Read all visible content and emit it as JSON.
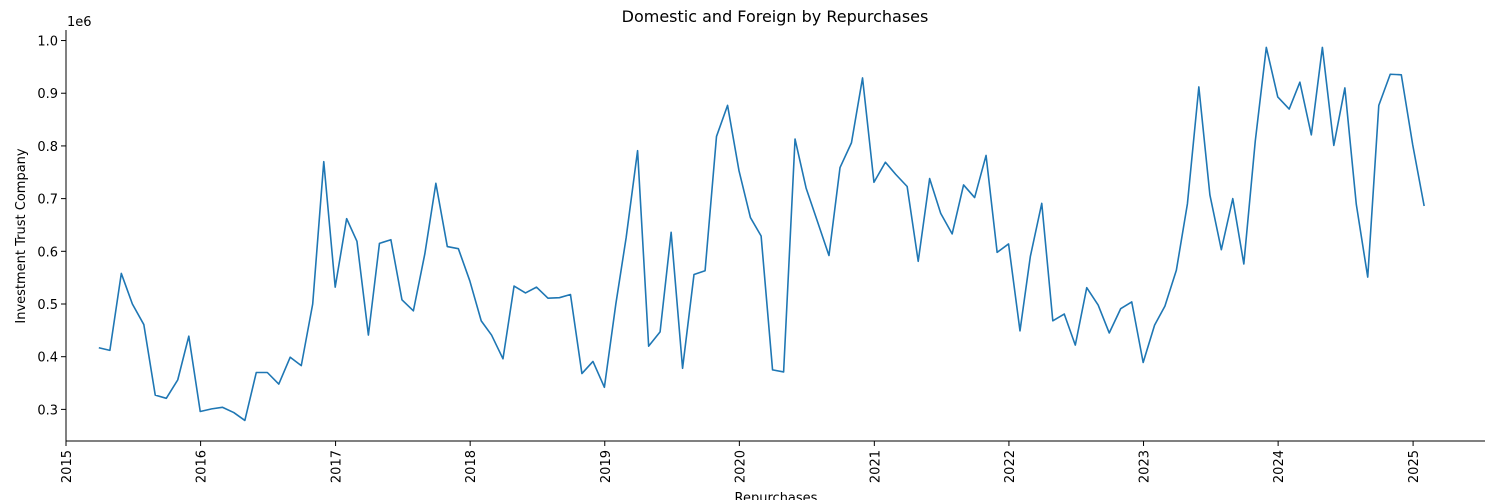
{
  "chart_data": {
    "type": "line",
    "title": "Domestic and Foreign by Repurchases",
    "xlabel": "Repurchases",
    "ylabel": "Investment Trust Company",
    "y_multiplier_label": "1e6",
    "x_tick_labels": [
      "2015",
      "2016",
      "2017",
      "2018",
      "2019",
      "2020",
      "2021",
      "2022",
      "2023",
      "2024",
      "2025"
    ],
    "y_tick_labels": [
      "0.3",
      "0.4",
      "0.5",
      "0.6",
      "0.7",
      "0.8",
      "0.9",
      "1.0"
    ],
    "xlim": [
      "2015-01-01",
      "2025-07-15"
    ],
    "ylim": [
      240000,
      1020000
    ],
    "grid": false,
    "line_color": "#1f77b4",
    "series": [
      {
        "x": [
          "2015-03-31",
          "2015-04-30",
          "2015-05-31",
          "2015-06-30",
          "2015-07-31",
          "2015-08-31",
          "2015-09-30",
          "2015-10-31",
          "2015-11-30",
          "2015-12-31",
          "2016-01-31",
          "2016-02-29",
          "2016-03-31",
          "2016-04-30",
          "2016-05-31",
          "2016-06-30",
          "2016-07-31",
          "2016-08-31",
          "2016-09-30",
          "2016-10-31",
          "2016-11-30",
          "2016-12-31",
          "2017-01-31",
          "2017-02-28",
          "2017-03-31",
          "2017-04-30",
          "2017-05-31",
          "2017-06-30",
          "2017-07-31",
          "2017-08-31",
          "2017-09-30",
          "2017-10-31",
          "2017-11-30",
          "2017-12-31",
          "2018-01-31",
          "2018-02-28",
          "2018-03-31",
          "2018-04-30",
          "2018-05-31",
          "2018-06-30",
          "2018-07-31",
          "2018-08-31",
          "2018-09-30",
          "2018-10-31",
          "2018-11-30",
          "2018-12-31",
          "2019-01-31",
          "2019-02-28",
          "2019-03-31",
          "2019-04-30",
          "2019-05-31",
          "2019-06-30",
          "2019-07-31",
          "2019-08-31",
          "2019-09-30",
          "2019-10-31",
          "2019-11-30",
          "2019-12-31",
          "2020-01-31",
          "2020-02-29",
          "2020-03-31",
          "2020-04-30",
          "2020-05-31",
          "2020-06-30",
          "2020-07-31",
          "2020-08-31",
          "2020-09-30",
          "2020-10-31",
          "2020-11-30",
          "2020-12-31",
          "2021-01-31",
          "2021-02-28",
          "2021-03-31",
          "2021-04-30",
          "2021-05-31",
          "2021-06-30",
          "2021-07-31",
          "2021-08-31",
          "2021-09-30",
          "2021-10-31",
          "2021-11-30",
          "2021-12-31",
          "2022-01-31",
          "2022-02-28",
          "2022-03-31",
          "2022-04-30",
          "2022-05-31",
          "2022-06-30",
          "2022-07-31",
          "2022-08-31",
          "2022-09-30",
          "2022-10-31",
          "2022-11-30",
          "2022-12-31",
          "2023-01-31",
          "2023-02-28",
          "2023-03-31",
          "2023-04-30",
          "2023-05-31",
          "2023-06-30",
          "2023-07-31",
          "2023-08-31",
          "2023-09-30",
          "2023-10-31",
          "2023-11-30",
          "2023-12-31",
          "2024-01-31",
          "2024-02-29",
          "2024-03-31",
          "2024-04-30",
          "2024-05-31",
          "2024-06-30",
          "2024-07-31",
          "2024-08-31",
          "2024-09-30",
          "2024-10-31",
          "2024-11-30",
          "2024-12-31",
          "2025-01-31"
        ],
        "values": [
          417000,
          412000,
          558000,
          500000,
          461000,
          327000,
          321000,
          356000,
          439000,
          296000,
          301000,
          304000,
          294000,
          279000,
          370000,
          370000,
          348000,
          399000,
          383000,
          500000,
          770000,
          532000,
          662000,
          619000,
          441000,
          615000,
          622000,
          508000,
          487000,
          595000,
          729000,
          609000,
          605000,
          544000,
          468000,
          441000,
          396000,
          534000,
          521000,
          532000,
          511000,
          512000,
          518000,
          368000,
          391000,
          342000,
          500000,
          626000,
          791000,
          420000,
          447000,
          636000,
          378000,
          556000,
          563000,
          818000,
          877000,
          753000,
          664000,
          629000,
          375000,
          371000,
          813000,
          720000,
          656000,
          592000,
          759000,
          806000,
          929000,
          731000,
          769000,
          746000,
          723000,
          581000,
          738000,
          672000,
          633000,
          726000,
          702000,
          782000,
          598000,
          614000,
          449000,
          590000,
          691000,
          468000,
          481000,
          422000,
          531000,
          498000,
          445000,
          491000,
          504000,
          389000,
          460000,
          496000,
          564000,
          690000,
          912000,
          707000,
          603000,
          700000,
          576000,
          809000,
          987000,
          893000,
          870000,
          921000,
          821000,
          987000,
          801000,
          910000,
          689000,
          551000,
          877000,
          936000,
          935000,
          802000,
          686000
        ]
      }
    ]
  }
}
